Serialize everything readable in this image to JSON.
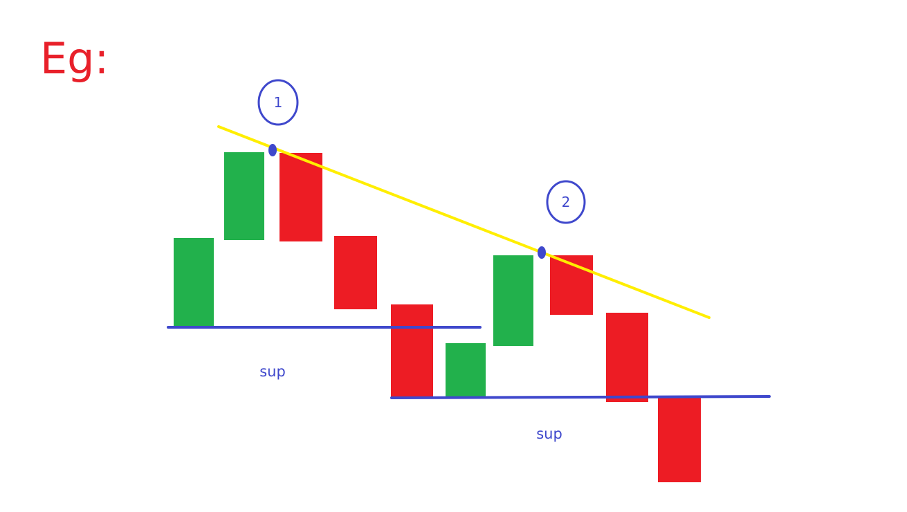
{
  "title": "Eg:",
  "colors": {
    "title": "#e8202a",
    "bullish": "#22b14c",
    "bearish": "#ed1c24",
    "trendline": "#ffee00",
    "support": "#3f48cc",
    "annotation": "#3f48cc",
    "label": "#3f48cc"
  },
  "candles": [
    {
      "type": "bullish"
    },
    {
      "type": "bullish"
    },
    {
      "type": "bearish"
    },
    {
      "type": "bearish"
    },
    {
      "type": "bearish"
    },
    {
      "type": "bullish"
    },
    {
      "type": "bullish"
    },
    {
      "type": "bearish"
    },
    {
      "type": "bearish"
    },
    {
      "type": "bearish"
    }
  ],
  "touch_markers": [
    {
      "label": "1"
    },
    {
      "label": "2"
    }
  ],
  "support_lines": [
    {
      "label": "sup"
    },
    {
      "label": "sup"
    }
  ]
}
